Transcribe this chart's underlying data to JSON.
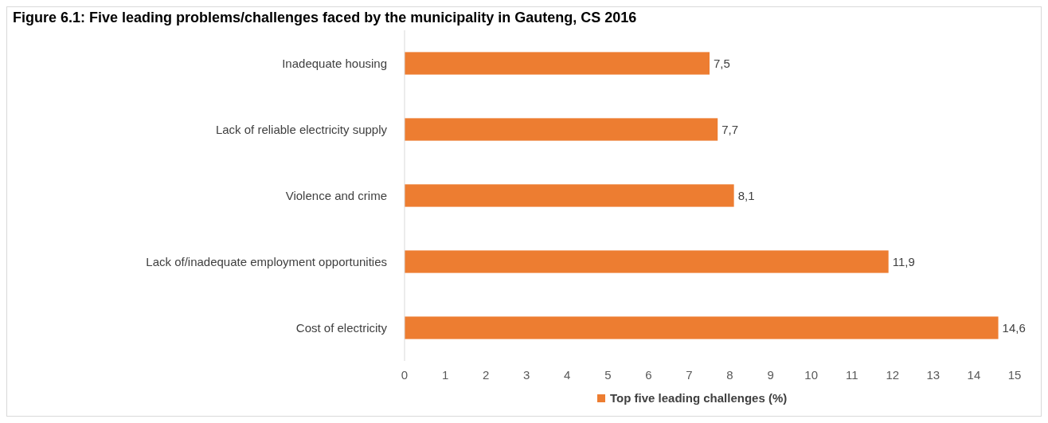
{
  "chart_data": {
    "type": "bar",
    "orientation": "horizontal",
    "title": "Figure 6.1: Five leading problems/challenges faced by the municipality in Gauteng, CS 2016",
    "categories": [
      "Inadequate housing",
      "Lack of reliable electricity supply",
      "Violence and crime",
      "Lack of/inadequate employment opportunities",
      "Cost of electricity"
    ],
    "series": [
      {
        "name": "Top five leading challenges (%)",
        "color": "#ed7d31",
        "values": [
          7.5,
          7.7,
          8.1,
          11.9,
          14.6
        ],
        "value_labels": [
          "7,5",
          "7,7",
          "8,1",
          "11,9",
          "14,6"
        ]
      }
    ],
    "xlim": [
      0,
      15
    ],
    "xticks": [
      0,
      1,
      2,
      3,
      4,
      5,
      6,
      7,
      8,
      9,
      10,
      11,
      12,
      13,
      14,
      15
    ],
    "grid": false,
    "legend": "bottom"
  }
}
